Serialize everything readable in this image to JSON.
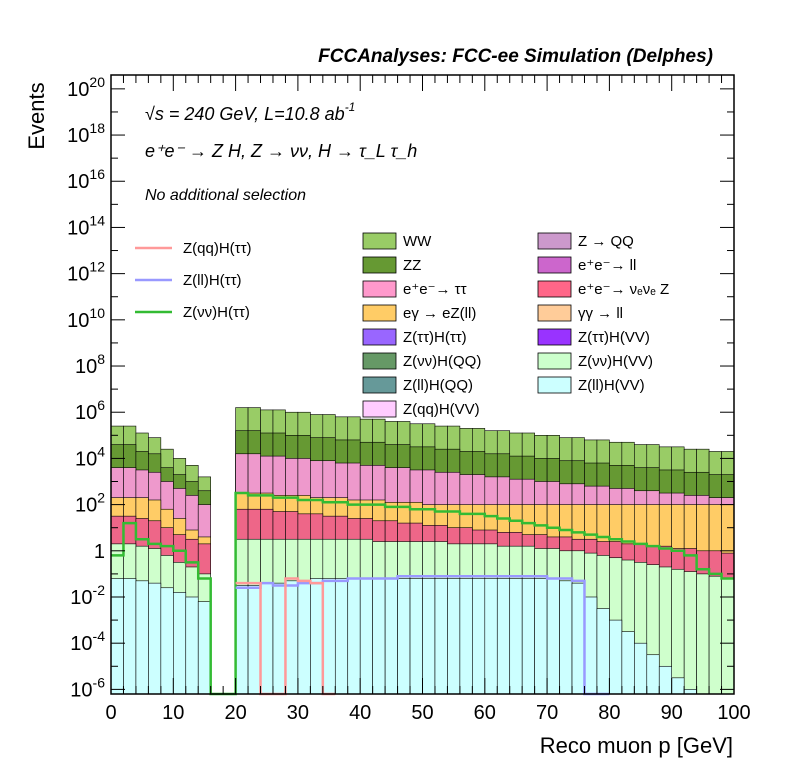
{
  "chart_data": {
    "type": "area",
    "title": "FCCAnalyses: FCC-ee Simulation (Delphes)",
    "xlabel": "Reco muon p [GeV]",
    "ylabel": "Events",
    "yscale": "log",
    "xlim": [
      0,
      100
    ],
    "ylim_exp": [
      -6.2,
      20.6
    ],
    "xticks": [
      "0",
      "10",
      "20",
      "30",
      "40",
      "50",
      "60",
      "70",
      "80",
      "90",
      "100"
    ],
    "yticks": [
      {
        "exp": -6,
        "base": "10",
        "sup": "-6"
      },
      {
        "exp": -4,
        "base": "10",
        "sup": "-4"
      },
      {
        "exp": -2,
        "base": "10",
        "sup": "-2"
      },
      {
        "exp": 0,
        "base": "1",
        "sup": ""
      },
      {
        "exp": 2,
        "base": "10",
        "sup": "2"
      },
      {
        "exp": 4,
        "base": "10",
        "sup": "4"
      },
      {
        "exp": 6,
        "base": "10",
        "sup": "6"
      },
      {
        "exp": 8,
        "base": "10",
        "sup": "8"
      },
      {
        "exp": 10,
        "base": "10",
        "sup": "10"
      },
      {
        "exp": 12,
        "base": "10",
        "sup": "12"
      },
      {
        "exp": 14,
        "base": "10",
        "sup": "14"
      },
      {
        "exp": 16,
        "base": "10",
        "sup": "16"
      },
      {
        "exp": 18,
        "base": "10",
        "sup": "18"
      },
      {
        "exp": 20,
        "base": "10",
        "sup": "20"
      }
    ],
    "annotations": {
      "energy": "√s = 240 GeV, L=10.8 ab",
      "energy_sup": "-1",
      "process": "e⁺e⁻ → Z H, Z → νν, H → τ_L τ_h",
      "selection": "No additional selection"
    },
    "stack_levels_log10_note": "cumulative log10 of stacked event counts, bins of 2 GeV",
    "stack_bands": [
      {
        "name": "WW",
        "color": "#99cc66",
        "top": [
          5.4,
          5.4,
          5.1,
          4.9,
          4.4,
          4.0,
          3.7,
          3.2,
          null,
          null,
          6.2,
          6.2,
          6.1,
          6.1,
          6.0,
          6.0,
          5.9,
          5.9,
          5.8,
          5.8,
          5.7,
          5.7,
          5.6,
          5.6,
          5.5,
          5.5,
          5.4,
          5.4,
          5.3,
          5.3,
          5.2,
          5.2,
          5.1,
          5.1,
          5.0,
          5.0,
          4.9,
          4.9,
          4.8,
          4.8,
          4.7,
          4.7,
          4.6,
          4.6,
          4.5,
          4.5,
          4.4,
          4.4,
          4.3,
          4.3
        ]
      },
      {
        "name": "ZZ",
        "color": "#669933",
        "top": [
          4.6,
          4.6,
          4.3,
          4.2,
          3.6,
          3.3,
          3.0,
          2.6,
          null,
          null,
          5.2,
          5.2,
          5.1,
          5.1,
          5.0,
          5.0,
          4.9,
          4.9,
          4.8,
          4.8,
          4.7,
          4.7,
          4.6,
          4.6,
          4.5,
          4.5,
          4.4,
          4.4,
          4.3,
          4.3,
          4.2,
          4.2,
          4.1,
          4.1,
          4.0,
          4.0,
          3.9,
          3.9,
          3.8,
          3.8,
          3.7,
          3.7,
          3.6,
          3.6,
          3.5,
          3.5,
          3.4,
          3.4,
          3.3,
          3.3
        ]
      },
      {
        "name": "e⁺e⁻→ ττ",
        "color": "#ee99cc",
        "top": [
          3.6,
          3.6,
          3.5,
          3.4,
          3.0,
          2.7,
          2.4,
          2.0,
          null,
          null,
          4.2,
          4.2,
          4.1,
          4.1,
          4.0,
          4.0,
          3.9,
          3.9,
          3.8,
          3.8,
          3.7,
          3.7,
          3.6,
          3.6,
          3.5,
          3.5,
          3.4,
          3.4,
          3.3,
          3.3,
          3.2,
          3.2,
          3.1,
          3.1,
          3.0,
          3.0,
          2.9,
          2.9,
          2.8,
          2.8,
          2.7,
          2.7,
          2.6,
          2.6,
          2.5,
          2.5,
          2.4,
          2.4,
          2.3,
          2.3
        ]
      },
      {
        "name": "eγ → eZ(ll)",
        "color": "#ffcc66",
        "top": [
          2.3,
          2.3,
          2.3,
          2.2,
          1.8,
          1.4,
          0.9,
          0.6,
          null,
          null,
          2.5,
          2.5,
          2.5,
          2.4,
          2.4,
          2.4,
          2.3,
          2.3,
          2.3,
          2.2,
          2.2,
          2.2,
          2.1,
          2.1,
          2.1,
          2.0,
          2.0,
          2.0,
          2.0,
          2.0,
          2.0,
          2.0,
          2.0,
          2.0,
          2.0,
          2.0,
          2.0,
          2.0,
          2.0,
          2.0,
          2.0,
          2.0,
          2.0,
          2.0,
          2.0,
          2.0,
          2.0,
          2.0,
          2.0,
          2.0
        ]
      },
      {
        "name": "e⁺e⁻→ νₑνₑ Z",
        "color": "#ee6688",
        "top": [
          1.5,
          1.5,
          1.4,
          1.3,
          1.0,
          0.7,
          0.5,
          0.3,
          null,
          null,
          1.8,
          1.8,
          1.8,
          1.7,
          1.7,
          1.6,
          1.6,
          1.5,
          1.5,
          1.4,
          1.4,
          1.3,
          1.3,
          1.2,
          1.2,
          1.1,
          1.1,
          1.0,
          1.0,
          0.9,
          0.9,
          0.8,
          0.8,
          0.7,
          0.7,
          0.6,
          0.6,
          0.5,
          0.5,
          0.4,
          0.4,
          0.3,
          0.3,
          0.2,
          0.2,
          0.1,
          0.1,
          0.0,
          0.0,
          -0.1
        ]
      },
      {
        "name": "Z(νν)H(VV)",
        "color": "#cfffcc",
        "top": [
          0.3,
          0.3,
          0.2,
          0.1,
          -0.2,
          -0.5,
          -0.7,
          -1.0,
          null,
          null,
          0.5,
          0.5,
          0.5,
          0.5,
          0.5,
          0.5,
          0.5,
          0.5,
          0.5,
          0.5,
          0.5,
          0.4,
          0.4,
          0.4,
          0.4,
          0.4,
          0.4,
          0.3,
          0.3,
          0.3,
          0.3,
          0.2,
          0.2,
          0.2,
          0.1,
          0.1,
          0.0,
          0.0,
          -0.1,
          -0.2,
          -0.3,
          -0.4,
          -0.5,
          -0.6,
          -0.7,
          -0.8,
          -0.9,
          -1.0,
          -1.1,
          -1.2
        ]
      },
      {
        "name": "Z(ll)H(VV)",
        "color": "#ccffff",
        "top": [
          -1.2,
          -1.2,
          -1.3,
          -1.4,
          -1.6,
          -1.8,
          -2.0,
          -2.2,
          null,
          null,
          -1.5,
          -1.5,
          -1.4,
          -1.4,
          -1.3,
          -1.3,
          -1.2,
          -1.2,
          -1.2,
          -1.2,
          -1.2,
          -1.2,
          -1.2,
          -1.2,
          -1.2,
          -1.2,
          -1.2,
          -1.2,
          -1.2,
          -1.2,
          -1.2,
          -1.2,
          -1.2,
          -1.2,
          -1.2,
          -1.2,
          -1.3,
          -1.4,
          -2.0,
          -2.5,
          -3.0,
          -3.5,
          -4.0,
          -4.5,
          -5.0,
          -5.5,
          -6.0,
          -6.5,
          -7.0,
          -7.5
        ]
      }
    ],
    "legend_left": [
      {
        "name": "Z(qq)H(ττ)",
        "color": "#ff9999"
      },
      {
        "name": "Z(ll)H(ττ)",
        "color": "#9999ff"
      },
      {
        "name": "Z(νν)H(ττ)",
        "color": "#33bb33"
      }
    ],
    "legend_right": [
      {
        "name": "WW",
        "color": "#99cc66"
      },
      {
        "name": "Z → QQ",
        "color": "#cc99cc"
      },
      {
        "name": "ZZ",
        "color": "#669933"
      },
      {
        "name": "e⁺e⁻→ ll",
        "color": "#cc66cc"
      },
      {
        "name": "e⁺e⁻→ ττ",
        "color": "#ff99cc"
      },
      {
        "name": "e⁺e⁻→ νₑνₑ Z",
        "color": "#ff6688"
      },
      {
        "name": "eγ → eZ(ll)",
        "color": "#ffcc66"
      },
      {
        "name": "γγ → ll",
        "color": "#ffcc99"
      },
      {
        "name": "Z(ττ)H(ττ)",
        "color": "#9966ff"
      },
      {
        "name": "Z(ττ)H(VV)",
        "color": "#9933ff"
      },
      {
        "name": "Z(νν)H(QQ)",
        "color": "#669966"
      },
      {
        "name": "Z(νν)H(VV)",
        "color": "#ccffcc"
      },
      {
        "name": "Z(ll)H(QQ)",
        "color": "#669999"
      },
      {
        "name": "Z(ll)H(VV)",
        "color": "#ccffff"
      },
      {
        "name": "Z(qq)H(VV)",
        "color": "#ffccff"
      }
    ],
    "signal_lines_log10": [
      {
        "name": "Z(νν)H(ττ)",
        "color": "#33bb33",
        "values": [
          -0.2,
          1.2,
          0.5,
          0.3,
          0.2,
          0.0,
          -0.5,
          -1.2,
          -6.5,
          -6.5,
          2.5,
          2.4,
          2.4,
          2.3,
          2.3,
          2.2,
          2.2,
          2.1,
          2.1,
          2.0,
          2.0,
          2.0,
          1.9,
          1.9,
          1.8,
          1.8,
          1.7,
          1.7,
          1.6,
          1.6,
          1.5,
          1.4,
          1.3,
          1.2,
          1.1,
          1.0,
          0.9,
          0.8,
          0.7,
          0.6,
          0.5,
          0.4,
          0.3,
          0.2,
          0.1,
          0.0,
          -0.2,
          -0.8,
          -1.0,
          -1.2
        ]
      },
      {
        "name": "Z(ll)H(ττ)",
        "color": "#9999ff",
        "values": [
          null,
          null,
          null,
          null,
          null,
          null,
          null,
          null,
          null,
          null,
          -1.6,
          -1.6,
          -1.4,
          -1.5,
          -1.5,
          -1.4,
          -1.4,
          -1.3,
          -1.3,
          -1.2,
          -1.2,
          -1.2,
          -1.2,
          -1.1,
          -1.1,
          -1.1,
          -1.1,
          -1.1,
          -1.1,
          -1.1,
          -1.1,
          -1.1,
          -1.1,
          -1.1,
          -1.1,
          -1.2,
          -1.2,
          -1.3,
          -6.5,
          -6.5,
          null,
          null,
          null,
          null,
          null,
          null,
          null,
          null,
          null,
          null
        ]
      },
      {
        "name": "Z(qq)H(ττ)",
        "color": "#ff9999",
        "values": [
          null,
          null,
          null,
          null,
          null,
          null,
          null,
          null,
          null,
          null,
          -1.4,
          -1.4,
          -6.5,
          -6.5,
          -1.2,
          -1.3,
          -1.4,
          -6.5,
          null,
          null,
          null,
          null,
          null,
          null,
          null,
          null,
          null,
          null,
          null,
          null,
          null,
          null,
          null,
          null,
          null,
          null,
          null,
          null,
          null,
          null,
          null,
          null,
          null,
          null,
          null,
          null,
          null,
          null,
          null,
          null
        ]
      }
    ]
  }
}
